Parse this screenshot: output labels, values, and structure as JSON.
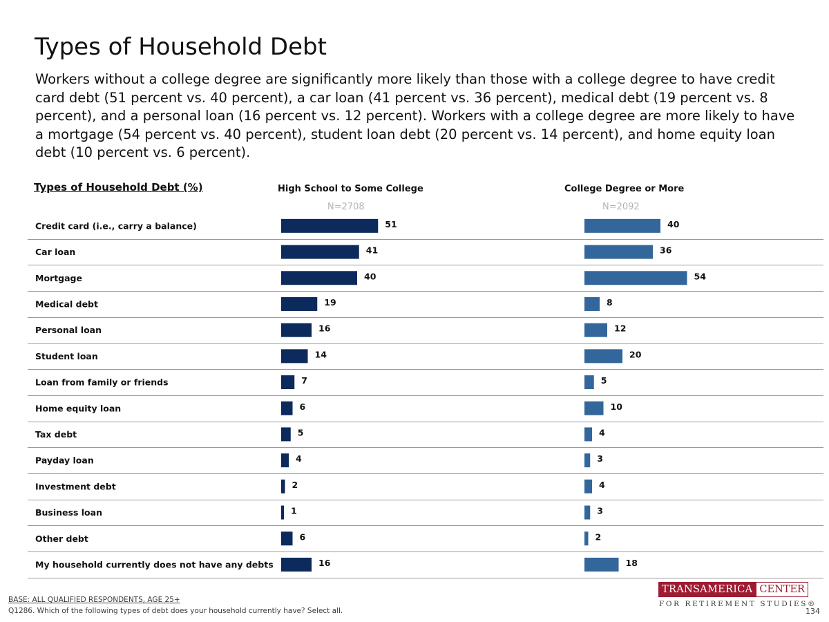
{
  "title": "Types of Household Debt",
  "subtitle": "Workers without a college degree are significantly more likely than those with a college degree to have credit card debt (51 percent vs. 40 percent), a car loan (41 percent vs. 36 percent), medical debt (19 percent vs. 8 percent), and a personal loan (16 percent vs. 12 percent). Workers with a college degree are more likely to have a mortgage (54 percent vs. 40 percent), student loan debt (20 percent vs. 14 percent), and home equity loan debt (10 percent vs. 6 percent).",
  "section_label": "Types of Household Debt (%)",
  "columns": [
    {
      "header": "High School to Some College",
      "n": "N=2708"
    },
    {
      "header": "College Degree or More",
      "n": "N=2092"
    }
  ],
  "chart_data": {
    "type": "bar",
    "orientation": "horizontal",
    "title": "Types of Household Debt (%)",
    "categories": [
      "Credit card (i.e., carry a balance)",
      "Car loan",
      "Mortgage",
      "Medical debt",
      "Personal loan",
      "Student loan",
      "Loan from family or friends",
      "Home equity loan",
      "Tax debt",
      "Payday loan",
      "Investment debt",
      "Business loan",
      "Other debt",
      "My household currently does not have any debts"
    ],
    "series": [
      {
        "name": "High School to Some College",
        "color": "#0c2a5b",
        "values": [
          51,
          41,
          40,
          19,
          16,
          14,
          7,
          6,
          5,
          4,
          2,
          1,
          6,
          16
        ]
      },
      {
        "name": "College Degree or More",
        "color": "#33669a",
        "values": [
          40,
          36,
          54,
          8,
          12,
          20,
          5,
          10,
          4,
          3,
          4,
          3,
          2,
          18
        ]
      }
    ],
    "layout": "side-by-side panels",
    "data_labels": true,
    "row_separators": true
  },
  "footer": {
    "base": "BASE: ALL QUALIFIED RESPONDENTS, AGE 25+",
    "question": "Q1286. Which of the following types of debt does your household currently have? Select all.",
    "page": "134"
  },
  "logo": {
    "word1": "TRANSAMERICA",
    "word2": "CENTER",
    "tagline": "FOR RETIREMENT STUDIES®"
  }
}
